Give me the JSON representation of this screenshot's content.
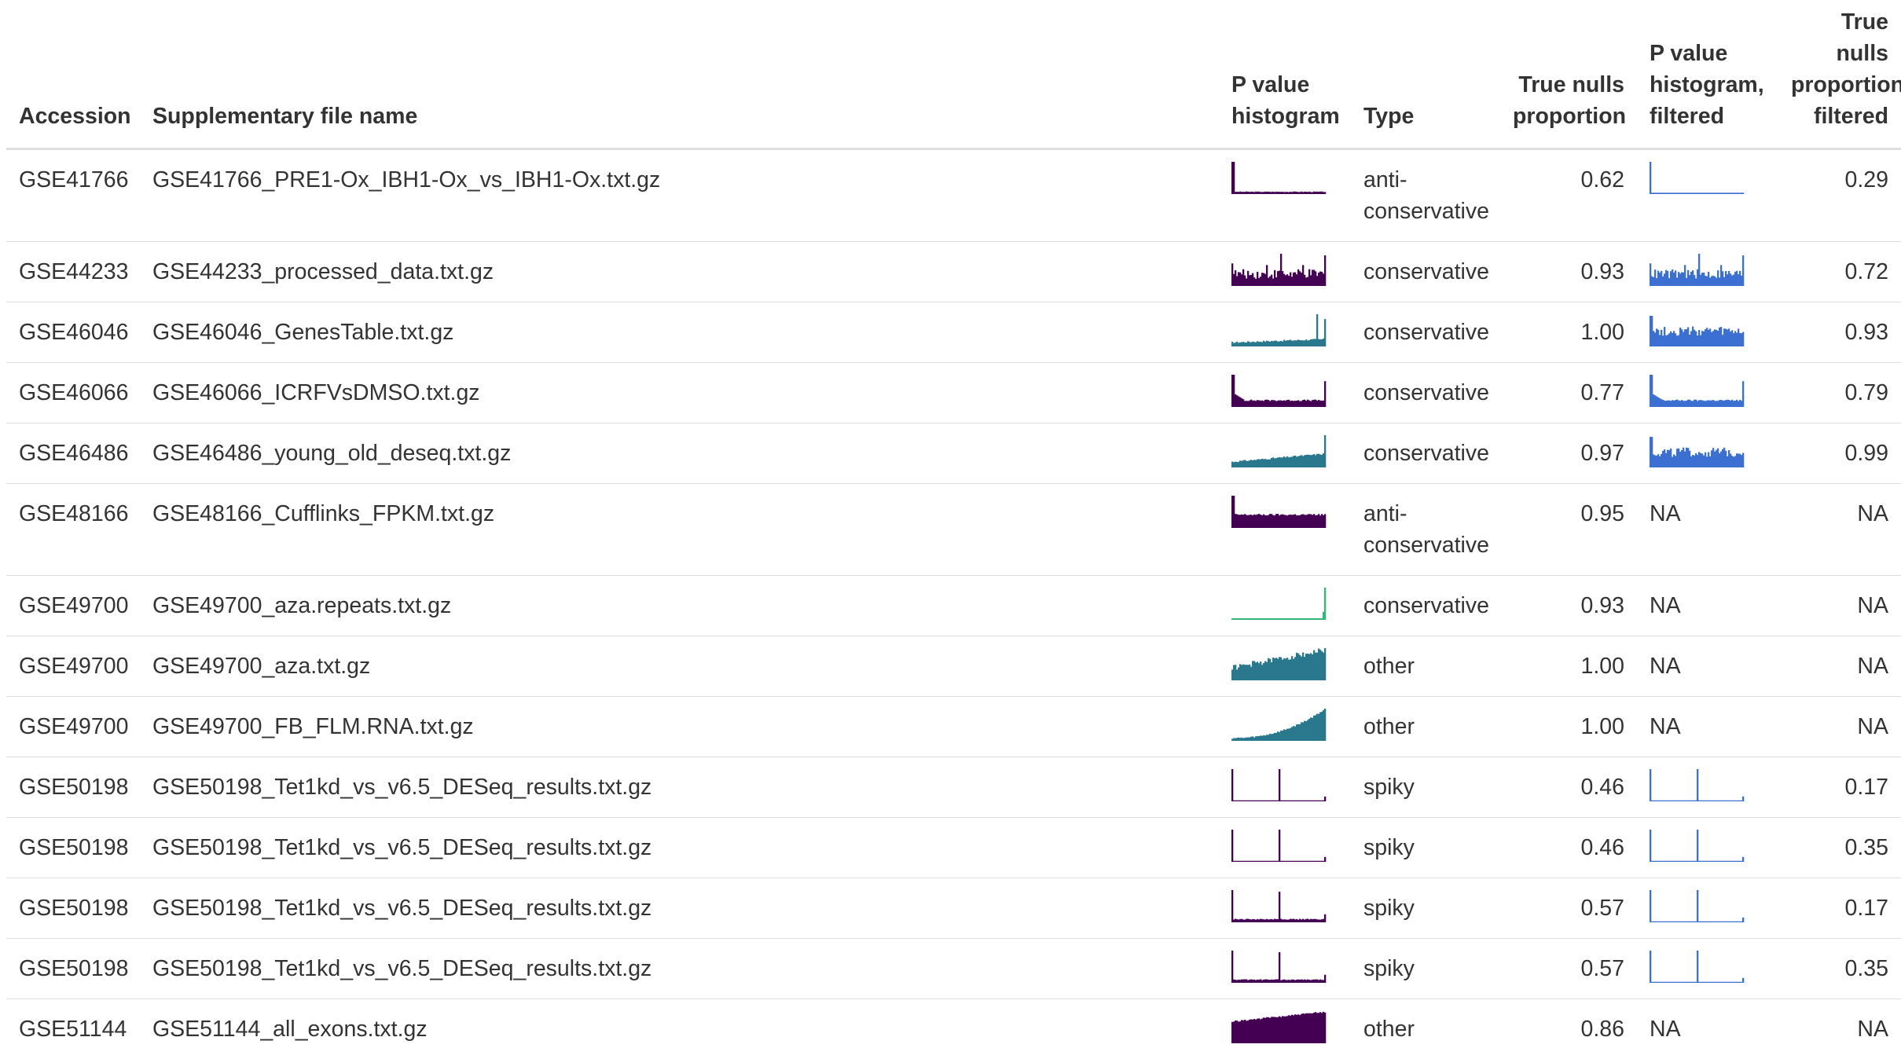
{
  "headers": {
    "accession": "Accession",
    "file_name": "Supplementary file name",
    "p_hist": "P value histogram",
    "type": "Type",
    "true_nulls": "True nulls proportion",
    "p_hist_filtered": "P value histogram, filtered",
    "true_nulls_filtered": "True nulls proportion, filtered"
  },
  "na_label": "NA",
  "colors": {
    "dark_purple": "#440154",
    "teal": "#2a788e",
    "green": "#35b779",
    "filtered_blue": "#3b6fd1"
  },
  "rows": [
    {
      "accession": "GSE41766",
      "file": "GSE41766_PRE1-Ox_IBH1-Ox_vs_IBH1-Ox.txt.gz",
      "type": "anti-conservative",
      "tn": "0.62",
      "tnf": "0.29",
      "shape": "anti",
      "fshape": "anti_strong",
      "color": "dark_purple",
      "filtered": true
    },
    {
      "accession": "GSE44233",
      "file": "GSE44233_processed_data.txt.gz",
      "type": "conservative",
      "tn": "0.93",
      "tnf": "0.72",
      "shape": "uniform_spike_mid",
      "fshape": "uniform_spike_mid",
      "color": "dark_purple",
      "filtered": true
    },
    {
      "accession": "GSE46046",
      "file": "GSE46046_GenesTable.txt.gz",
      "type": "conservative",
      "tn": "1.00",
      "tnf": "0.93",
      "shape": "low_spike_end",
      "fshape": "uniform_noisy",
      "color": "teal",
      "filtered": true
    },
    {
      "accession": "GSE46066",
      "file": "GSE46066_ICRFVsDMSO.txt.gz",
      "type": "conservative",
      "tn": "0.77",
      "tnf": "0.79",
      "shape": "anti_mild",
      "fshape": "anti_mild",
      "color": "dark_purple",
      "filtered": true
    },
    {
      "accession": "GSE46486",
      "file": "GSE46486_young_old_deseq.txt.gz",
      "type": "conservative",
      "tn": "0.97",
      "tnf": "0.99",
      "shape": "rising_end",
      "fshape": "uniform_noisy",
      "color": "teal",
      "filtered": true
    },
    {
      "accession": "GSE48166",
      "file": "GSE48166_Cufflinks_FPKM.txt.gz",
      "type": "anti-conservative",
      "tn": "0.95",
      "tnf": "NA",
      "shape": "anti_flat",
      "fshape": null,
      "color": "dark_purple",
      "filtered": false
    },
    {
      "accession": "GSE49700",
      "file": "GSE49700_aza.repeats.txt.gz",
      "type": "conservative",
      "tn": "0.93",
      "tnf": "NA",
      "shape": "flat_spike_end",
      "fshape": null,
      "color": "green",
      "filtered": false
    },
    {
      "accession": "GSE49700",
      "file": "GSE49700_aza.txt.gz",
      "type": "other",
      "tn": "1.00",
      "tnf": "NA",
      "shape": "rising_full",
      "fshape": null,
      "color": "teal",
      "filtered": false
    },
    {
      "accession": "GSE49700",
      "file": "GSE49700_FB_FLM.RNA.txt.gz",
      "type": "other",
      "tn": "1.00",
      "tnf": "NA",
      "shape": "exp_rise",
      "fshape": null,
      "color": "teal",
      "filtered": false
    },
    {
      "accession": "GSE50198",
      "file": "GSE50198_Tet1kd_vs_v6.5_DESeq_results.txt.gz",
      "type": "spiky",
      "tn": "0.46",
      "tnf": "0.17",
      "shape": "spiky",
      "fshape": "spiky",
      "color": "dark_purple",
      "filtered": true
    },
    {
      "accession": "GSE50198",
      "file": "GSE50198_Tet1kd_vs_v6.5_DESeq_results.txt.gz",
      "type": "spiky",
      "tn": "0.46",
      "tnf": "0.35",
      "shape": "spiky",
      "fshape": "spiky",
      "color": "dark_purple",
      "filtered": true
    },
    {
      "accession": "GSE50198",
      "file": "GSE50198_Tet1kd_vs_v6.5_DESeq_results.txt.gz",
      "type": "spiky",
      "tn": "0.57",
      "tnf": "0.17",
      "shape": "spiky_b",
      "fshape": "spiky",
      "color": "dark_purple",
      "filtered": true
    },
    {
      "accession": "GSE50198",
      "file": "GSE50198_Tet1kd_vs_v6.5_DESeq_results.txt.gz",
      "type": "spiky",
      "tn": "0.57",
      "tnf": "0.35",
      "shape": "spiky_b",
      "fshape": "spiky",
      "color": "dark_purple",
      "filtered": true
    },
    {
      "accession": "GSE51144",
      "file": "GSE51144_all_exons.txt.gz",
      "type": "other",
      "tn": "0.86",
      "tnf": "NA",
      "shape": "block_rising",
      "fshape": null,
      "color": "dark_purple",
      "filtered": false
    }
  ]
}
